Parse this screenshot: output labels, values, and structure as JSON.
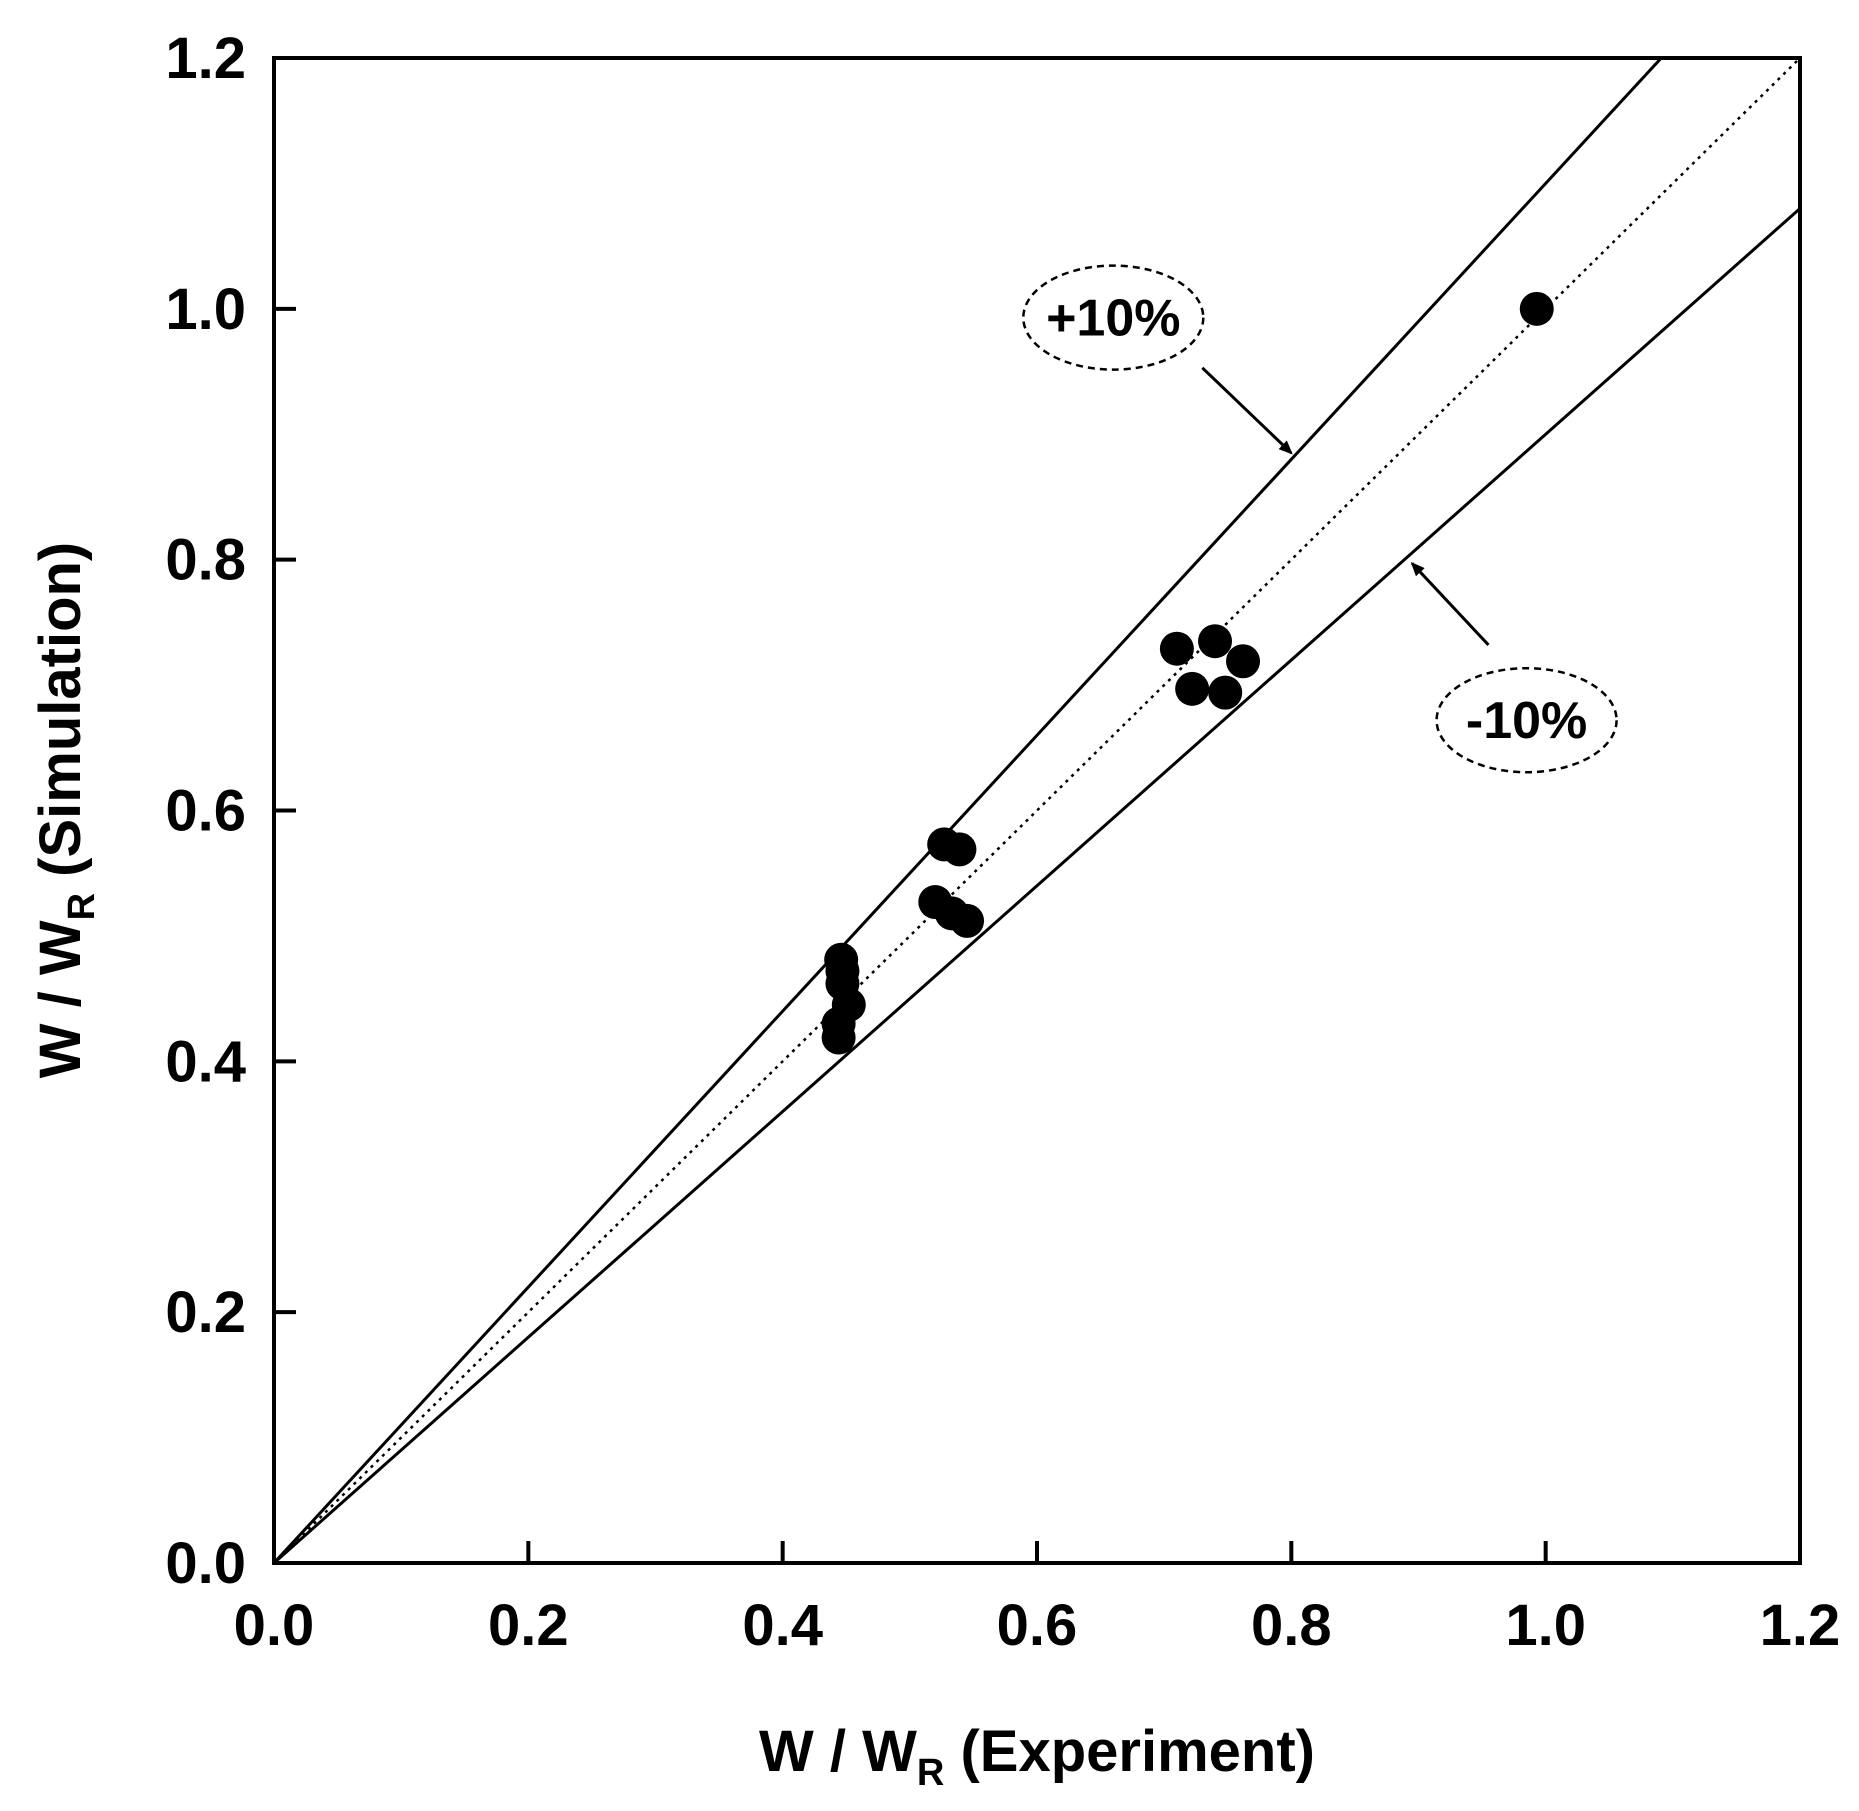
{
  "chart_data": {
    "type": "scatter",
    "title": "",
    "xlabel": {
      "main": "W / W",
      "sub": "R",
      "suffix": " (Experiment)"
    },
    "ylabel": {
      "main": "W / W",
      "sub": "R",
      "suffix": " (Simulation)"
    },
    "xlim": [
      0.0,
      1.2
    ],
    "ylim": [
      0.0,
      1.2
    ],
    "x_ticks": [
      "0.0",
      "0.2",
      "0.4",
      "0.6",
      "0.8",
      "1.0",
      "1.2"
    ],
    "y_ticks": [
      "0.0",
      "0.2",
      "0.4",
      "0.6",
      "0.8",
      "1.0",
      "1.2"
    ],
    "grid": false,
    "points": [
      {
        "x": 0.993,
        "y": 1.0
      },
      {
        "x": 0.71,
        "y": 0.729
      },
      {
        "x": 0.74,
        "y": 0.735
      },
      {
        "x": 0.762,
        "y": 0.719
      },
      {
        "x": 0.722,
        "y": 0.697
      },
      {
        "x": 0.748,
        "y": 0.694
      },
      {
        "x": 0.527,
        "y": 0.573
      },
      {
        "x": 0.539,
        "y": 0.569
      },
      {
        "x": 0.52,
        "y": 0.527
      },
      {
        "x": 0.533,
        "y": 0.518
      },
      {
        "x": 0.545,
        "y": 0.512
      },
      {
        "x": 0.446,
        "y": 0.481
      },
      {
        "x": 0.447,
        "y": 0.472
      },
      {
        "x": 0.447,
        "y": 0.462
      },
      {
        "x": 0.452,
        "y": 0.445
      },
      {
        "x": 0.444,
        "y": 0.43
      },
      {
        "x": 0.444,
        "y": 0.419
      }
    ],
    "reference_lines": [
      {
        "name": "plus-10-percent",
        "slope": 1.1,
        "style": "solid"
      },
      {
        "name": "parity",
        "slope": 1.0,
        "style": "dotted"
      },
      {
        "name": "minus-10-percent",
        "slope": 0.9,
        "style": "solid"
      }
    ],
    "annotations": [
      {
        "name": "plus-10",
        "text": "+10%",
        "label_at": [
          0.66,
          0.993
        ],
        "arrow_from": [
          0.73,
          0.953
        ],
        "arrow_to": [
          0.8,
          0.885
        ]
      },
      {
        "name": "minus-10",
        "text": "-10%",
        "label_at": [
          0.985,
          0.672
        ],
        "arrow_from": [
          0.955,
          0.732
        ],
        "arrow_to": [
          0.895,
          0.797
        ]
      }
    ]
  }
}
